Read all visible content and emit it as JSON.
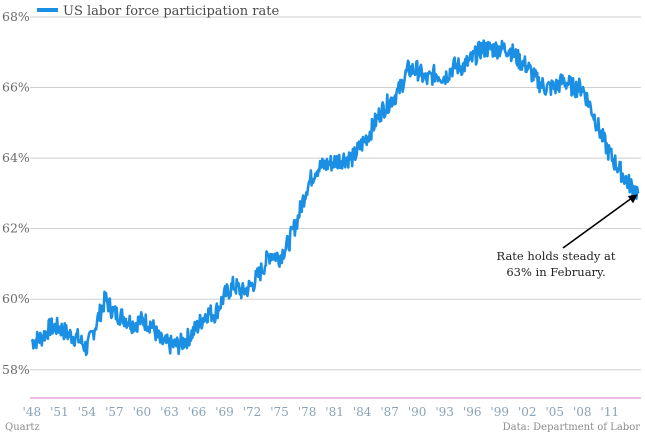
{
  "chart_data": {
    "type": "line",
    "title": "",
    "xlabel": "",
    "ylabel": "",
    "legend": {
      "position": "top-left",
      "label": "US labor force participation rate"
    },
    "grid": true,
    "ylim": [
      57.2,
      68
    ],
    "xlim": [
      1947.8,
      2014.4
    ],
    "y_ticks": [
      58,
      60,
      62,
      64,
      66,
      68
    ],
    "y_tick_labels": [
      "58%",
      "60%",
      "62%",
      "64%",
      "66%",
      "68%"
    ],
    "x_ticks": [
      1948,
      1951,
      1954,
      1957,
      1960,
      1963,
      1966,
      1969,
      1972,
      1975,
      1978,
      1981,
      1984,
      1987,
      1990,
      1993,
      1996,
      1999,
      2002,
      2005,
      2008,
      2011
    ],
    "x_tick_labels": [
      "'48",
      "'51",
      "'54",
      "'57",
      "'60",
      "'63",
      "'66",
      "'69",
      "'72",
      "'75",
      "'78",
      "'81",
      "'84",
      "'87",
      "'90",
      "'93",
      "'96",
      "'99",
      "'02",
      "'05",
      "'08",
      "'11"
    ],
    "series": [
      {
        "name": "US labor force participation rate",
        "color": "#1a8fe3",
        "x": [
          1948,
          1949,
          1950,
          1951,
          1952,
          1953,
          1954,
          1955,
          1956,
          1957,
          1958,
          1959,
          1960,
          1961,
          1962,
          1963,
          1964,
          1965,
          1966,
          1967,
          1968,
          1969,
          1970,
          1971,
          1972,
          1973,
          1974,
          1975,
          1976,
          1977,
          1978,
          1979,
          1980,
          1981,
          1982,
          1983,
          1984,
          1985,
          1986,
          1987,
          1988,
          1989,
          1990,
          1991,
          1992,
          1993,
          1994,
          1995,
          1996,
          1997,
          1998,
          1999,
          2000,
          2001,
          2002,
          2003,
          2004,
          2005,
          2006,
          2007,
          2008,
          2009,
          2010,
          2011,
          2012,
          2013,
          2014.15
        ],
        "y": [
          58.8,
          58.9,
          59.2,
          59.2,
          59.0,
          58.9,
          58.6,
          59.3,
          60.0,
          59.6,
          59.5,
          59.3,
          59.4,
          59.3,
          58.8,
          58.7,
          58.7,
          58.9,
          59.2,
          59.6,
          59.6,
          60.1,
          60.4,
          60.2,
          60.4,
          60.8,
          61.3,
          61.2,
          61.6,
          62.3,
          63.2,
          63.7,
          63.8,
          63.9,
          64.0,
          64.0,
          64.4,
          64.8,
          65.3,
          65.6,
          65.9,
          66.5,
          66.5,
          66.2,
          66.4,
          66.3,
          66.6,
          66.6,
          66.8,
          67.1,
          67.1,
          67.1,
          67.1,
          66.8,
          66.6,
          66.2,
          66.0,
          66.0,
          66.2,
          66.0,
          66.0,
          65.4,
          64.7,
          64.1,
          63.7,
          63.3,
          63.0
        ]
      }
    ],
    "annotation": {
      "lines": [
        "Rate holds steady at",
        "63% in February."
      ],
      "x": 2014.15,
      "y": 63.0
    }
  },
  "footer": {
    "source_left": "Quartz",
    "source_right": "Data: Department of Labor"
  }
}
